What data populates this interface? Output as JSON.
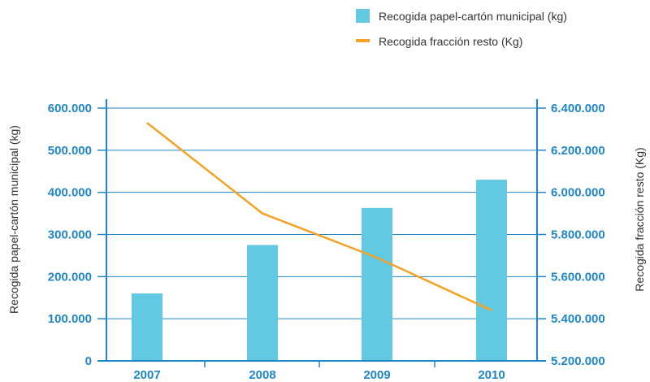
{
  "chart_data": {
    "type": "bar",
    "categories": [
      "2007",
      "2008",
      "2009",
      "2010"
    ],
    "series": [
      {
        "name": "Recogida papel-cartón municipal (kg)",
        "type": "bar",
        "axis": "left",
        "values": [
          160000,
          275000,
          363000,
          430000
        ],
        "color": "#62c9e3"
      },
      {
        "name": "Recogida fracción resto (Kg)",
        "type": "line",
        "axis": "right",
        "values": [
          6330000,
          5900000,
          5690000,
          5440000
        ],
        "color": "#f4a124"
      }
    ],
    "ylabel_left": "Recogida papel-cartón municipal (kg)",
    "ylabel_right": "Recogida fracción resto (Kg)",
    "ylim_left": [
      0,
      600000
    ],
    "ylim_right": [
      5200000,
      6400000
    ],
    "yticks_left": [
      "0",
      "100.000",
      "200.000",
      "300.000",
      "400.000",
      "500.000",
      "600.000"
    ],
    "yticks_right": [
      "5.200.000",
      "5.400.000",
      "5.600.000",
      "5.800.000",
      "6.000.000",
      "6.200.000",
      "6.400.000"
    ],
    "grid": true,
    "legend_position": "top-right",
    "axis_color": "#1f86c7"
  }
}
